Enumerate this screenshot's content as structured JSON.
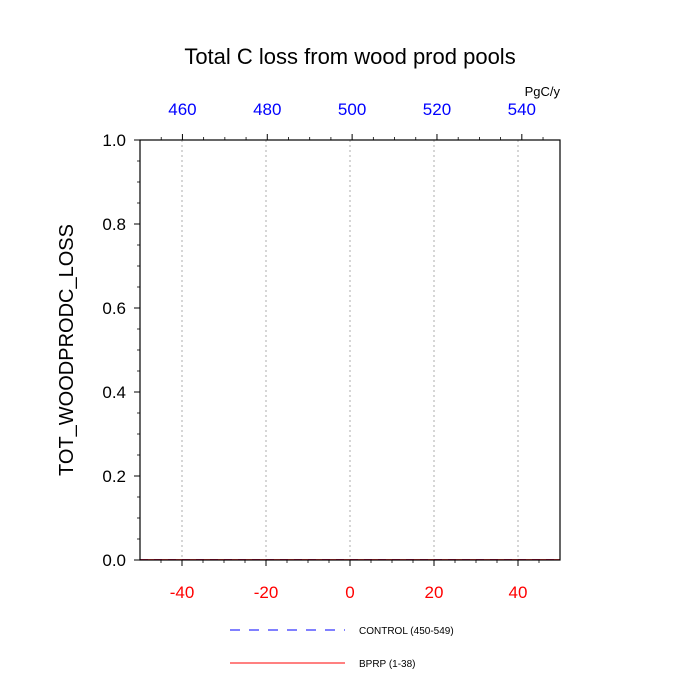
{
  "chart_data": {
    "type": "line",
    "title": "Total C loss from wood prod pools",
    "units_label": "PgC/y",
    "ylabel": "TOT_WOODPRODC_LOSS",
    "xlabel": "",
    "xlim": [
      -50,
      50
    ],
    "ylim": [
      0,
      1
    ],
    "x_ticks": [
      -40,
      -20,
      0,
      20,
      40
    ],
    "x_tick_labels": [
      "-40",
      "-20",
      "0",
      "20",
      "40"
    ],
    "top_xlim": [
      450,
      549
    ],
    "top_ticks": [
      460,
      480,
      500,
      520,
      540
    ],
    "top_tick_labels": [
      "460",
      "480",
      "500",
      "520",
      "540"
    ],
    "y_ticks": [
      0.0,
      0.2,
      0.4,
      0.6,
      0.8,
      1.0
    ],
    "y_tick_labels": [
      "0.0",
      "0.2",
      "0.4",
      "0.6",
      "0.8",
      "1.0"
    ],
    "vertical_gridlines": true,
    "bottom_axis_color": "#ff0000",
    "top_axis_color": "#0000ff",
    "series": [
      {
        "name": "CONTROL (450-549)",
        "color": "#0000ff",
        "style": "dashed",
        "x": [
          450,
          549
        ],
        "y": [
          0,
          0
        ]
      },
      {
        "name": "BPRP (1-38)",
        "color": "#ff0000",
        "style": "solid",
        "x": [
          1,
          38
        ],
        "y": [
          0,
          0
        ]
      }
    ],
    "legend_position": "bottom"
  }
}
